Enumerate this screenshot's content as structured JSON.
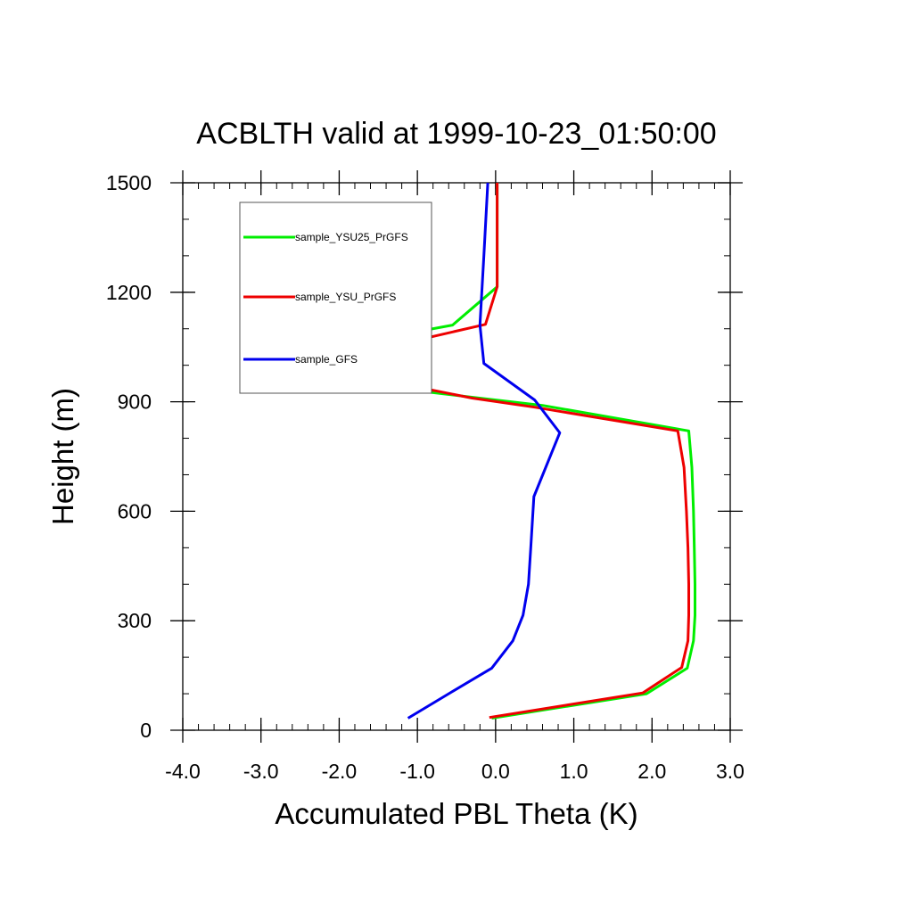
{
  "chart_data": {
    "type": "line",
    "title": "ACBLTH valid at 1999-10-23_01:50:00",
    "xlabel": "Accumulated PBL Theta (K)",
    "ylabel": "Height (m)",
    "xlim": [
      -4.0,
      3.0
    ],
    "ylim": [
      0,
      1500
    ],
    "x_ticks": [
      -4.0,
      -3.0,
      -2.0,
      -1.0,
      0.0,
      1.0,
      2.0,
      3.0
    ],
    "x_tick_labels": [
      "-4.0",
      "-3.0",
      "-2.0",
      "-1.0",
      "0.0",
      "1.0",
      "2.0",
      "3.0"
    ],
    "y_ticks": [
      0,
      300,
      600,
      900,
      1200,
      1500
    ],
    "y_tick_labels": [
      "0",
      "300",
      "600",
      "900",
      "1200",
      "1500"
    ],
    "x_minor_step": 0.2,
    "y_minor_step": 100,
    "grid": false,
    "legend_placement": "top-left inside",
    "series": [
      {
        "name": "sample_YSU25_PrGFS",
        "color": "#00ee00",
        "points": [
          [
            -0.05,
            33
          ],
          [
            1.93,
            100
          ],
          [
            2.45,
            170
          ],
          [
            2.53,
            245
          ],
          [
            2.55,
            315
          ],
          [
            2.55,
            400
          ],
          [
            2.54,
            500
          ],
          [
            2.53,
            600
          ],
          [
            2.51,
            720
          ],
          [
            2.47,
            820
          ],
          [
            0.6,
            890
          ],
          [
            -1.0,
            930
          ],
          [
            -3.08,
            1010
          ],
          [
            -0.55,
            1110
          ],
          [
            0.02,
            1215
          ],
          [
            0.02,
            1500
          ]
        ]
      },
      {
        "name": "sample_YSU_PrGFS",
        "color": "#ee0000",
        "points": [
          [
            -0.08,
            35
          ],
          [
            1.88,
            102
          ],
          [
            2.38,
            172
          ],
          [
            2.46,
            245
          ],
          [
            2.47,
            315
          ],
          [
            2.47,
            400
          ],
          [
            2.46,
            500
          ],
          [
            2.44,
            600
          ],
          [
            2.41,
            720
          ],
          [
            2.33,
            820
          ],
          [
            0.5,
            885
          ],
          [
            -0.3,
            910
          ],
          [
            -2.4,
            1000
          ],
          [
            -0.13,
            1112
          ],
          [
            0.02,
            1215
          ],
          [
            0.02,
            1500
          ]
        ]
      },
      {
        "name": "sample_GFS",
        "color": "#0000ee",
        "points": [
          [
            -1.12,
            33
          ],
          [
            -0.6,
            100
          ],
          [
            -0.05,
            170
          ],
          [
            0.22,
            245
          ],
          [
            0.35,
            315
          ],
          [
            0.42,
            400
          ],
          [
            0.45,
            500
          ],
          [
            0.49,
            640
          ],
          [
            0.82,
            815
          ],
          [
            0.5,
            905
          ],
          [
            -0.15,
            1005
          ],
          [
            -0.2,
            1110
          ],
          [
            -0.15,
            1300
          ],
          [
            -0.1,
            1500
          ]
        ]
      }
    ]
  }
}
